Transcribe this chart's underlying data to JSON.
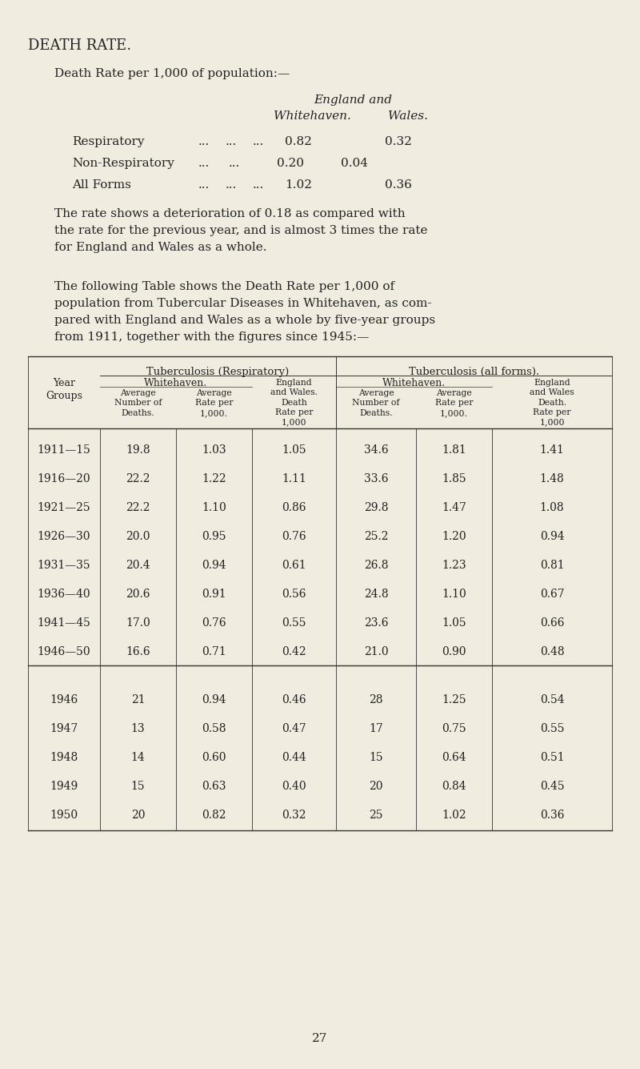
{
  "bg_color": "#f0ece0",
  "text_color": "#222222",
  "title": "DEATH RATE.",
  "subtitle": "Death Rate per 1,000 of population:—",
  "eng_and": "England and",
  "whitehaven_col": "Whitehaven.",
  "wales_col": "Wales.",
  "simple_rows": [
    [
      "Respiratory",
      "...",
      "...",
      "...",
      "0.82",
      "0.32"
    ],
    [
      "Non-Respiratory",
      "...",
      "...",
      "0.20",
      "0.04",
      ""
    ],
    [
      "All Forms",
      "...",
      "...",
      "...",
      "1.02",
      "0.36"
    ]
  ],
  "para1_lines": [
    "The rate shows a deterioration of 0.18 as compared with",
    "the rate for the previous year, and is almost 3 times the rate",
    "for England and Wales as a whole."
  ],
  "para2_lines": [
    "The following Table shows the Death Rate per 1,000 of",
    "population from Tubercular Diseases in Whitehaven, as com-",
    "pared with England and Wales as a whole by five-year groups",
    "from 1911, together with the figures since 1945:—"
  ],
  "table_rows_group": [
    [
      "1911—15",
      "19.8",
      "1.03",
      "1.05",
      "34.6",
      "1.81",
      "1.41"
    ],
    [
      "1916—20",
      "22.2",
      "1.22",
      "1.11",
      "33.6",
      "1.85",
      "1.48"
    ],
    [
      "1921—25",
      "22.2",
      "1.10",
      "0.86",
      "29.8",
      "1.47",
      "1.08"
    ],
    [
      "1926—30",
      "20.0",
      "0.95",
      "0.76",
      "25.2",
      "1.20",
      "0.94"
    ],
    [
      "1931—35",
      "20.4",
      "0.94",
      "0.61",
      "26.8",
      "1.23",
      "0.81"
    ],
    [
      "1936—40",
      "20.6",
      "0.91",
      "0.56",
      "24.8",
      "1.10",
      "0.67"
    ],
    [
      "1941—45",
      "17.0",
      "0.76",
      "0.55",
      "23.6",
      "1.05",
      "0.66"
    ],
    [
      "1946—50",
      "16.6",
      "0.71",
      "0.42",
      "21.0",
      "0.90",
      "0.48"
    ]
  ],
  "table_rows_single": [
    [
      "1946",
      "21",
      "0.94",
      "0.46",
      "28",
      "1.25",
      "0.54"
    ],
    [
      "1947",
      "13",
      "0.58",
      "0.47",
      "17",
      "0.75",
      "0.55"
    ],
    [
      "1948",
      "14",
      "0.60",
      "0.44",
      "15",
      "0.64",
      "0.51"
    ],
    [
      "1949",
      "15",
      "0.63",
      "0.40",
      "20",
      "0.84",
      "0.45"
    ],
    [
      "1950",
      "20",
      "0.82",
      "0.32",
      "25",
      "1.02",
      "0.36"
    ]
  ],
  "page_number": "27"
}
